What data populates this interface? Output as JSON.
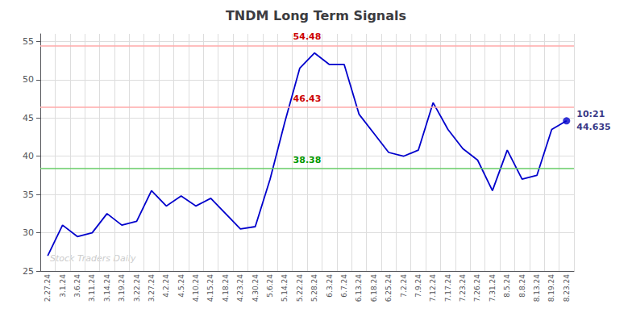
{
  "chart_data": {
    "type": "line",
    "title": "TNDM Long Term Signals",
    "categories": [
      "2.27.24",
      "3.1.24",
      "3.6.24",
      "3.11.24",
      "3.14.24",
      "3.19.24",
      "3.22.24",
      "3.27.24",
      "4.2.24",
      "4.5.24",
      "4.10.24",
      "4.15.24",
      "4.18.24",
      "4.23.24",
      "4.30.24",
      "5.6.24",
      "5.14.24",
      "5.22.24",
      "5.28.24",
      "6.3.24",
      "6.7.24",
      "6.13.24",
      "6.18.24",
      "6.25.24",
      "7.2.24",
      "7.9.24",
      "7.12.24",
      "7.17.24",
      "7.23.24",
      "7.26.24",
      "7.31.24",
      "8.5.24",
      "8.8.24",
      "8.13.24",
      "8.19.24",
      "8.23.24"
    ],
    "values": [
      27.0,
      31.0,
      29.5,
      30.0,
      32.5,
      31.0,
      31.5,
      35.5,
      33.5,
      34.8,
      33.5,
      34.5,
      32.5,
      30.5,
      30.8,
      37.0,
      44.5,
      51.5,
      53.5,
      52.0,
      52.0,
      45.5,
      43.0,
      40.5,
      40.0,
      40.8,
      47.0,
      43.5,
      41.0,
      39.5,
      35.5,
      40.8,
      37.0,
      37.5,
      43.5,
      44.635
    ],
    "color": "#0000cc",
    "ylim": [
      25,
      56
    ],
    "yticks": [
      25,
      30,
      35,
      40,
      45,
      50,
      55
    ],
    "grid": true,
    "reference_lines": [
      {
        "value": 54.48,
        "color": "#ffaaaa",
        "label": "54.48",
        "label_color": "#cc0000"
      },
      {
        "value": 46.43,
        "color": "#ffaaaa",
        "label": "46.43",
        "label_color": "#cc0000"
      },
      {
        "value": 38.38,
        "color": "#66cc66",
        "label": "38.38",
        "label_color": "#009900"
      }
    ],
    "last_point": {
      "color": "#0000cc",
      "time_label": "10:21",
      "price_label": "44.635",
      "label_color": "#000066"
    },
    "watermark": "Stock Traders Daily"
  }
}
